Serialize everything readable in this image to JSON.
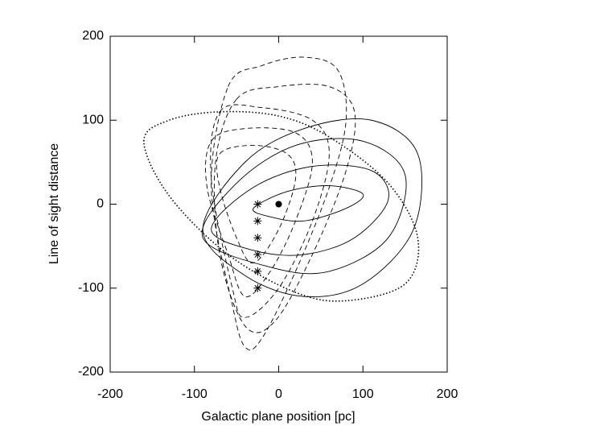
{
  "chart_data": {
    "type": "line",
    "xlabel": "Galactic plane position [pc]",
    "ylabel": "Line of sight distance",
    "xlim": [
      -200,
      200
    ],
    "ylim": [
      -200,
      200
    ],
    "xticks": [
      -200,
      -100,
      0,
      100,
      200
    ],
    "yticks": [
      -200,
      -100,
      0,
      100,
      200
    ],
    "color": "#000000",
    "series": [
      {
        "style": "dotted",
        "closed": true,
        "x": [
          -160,
          -130,
          -70,
          0,
          60,
          130,
          165,
          150,
          80,
          20,
          -60,
          -130
        ],
        "y": [
          75,
          100,
          110,
          105,
          80,
          25,
          -40,
          -95,
          -115,
          -105,
          -60,
          10
        ]
      },
      {
        "style": "solid",
        "closed": true,
        "x": [
          -30,
          10,
          60,
          100,
          80,
          30,
          -10
        ],
        "y": [
          -5,
          15,
          22,
          12,
          -5,
          -20,
          -15
        ]
      },
      {
        "style": "solid",
        "closed": true,
        "x": [
          -80,
          -30,
          40,
          110,
          130,
          90,
          30,
          -30
        ],
        "y": [
          -30,
          20,
          45,
          40,
          5,
          -40,
          -60,
          -55
        ]
      },
      {
        "style": "solid",
        "closed": true,
        "x": [
          -90,
          -50,
          20,
          100,
          150,
          130,
          60,
          -10
        ],
        "y": [
          -40,
          25,
          70,
          75,
          35,
          -40,
          -80,
          -75
        ]
      },
      {
        "style": "solid",
        "closed": true,
        "x": [
          -90,
          -40,
          30,
          110,
          165,
          160,
          100,
          30,
          -40
        ],
        "y": [
          -30,
          50,
          90,
          100,
          60,
          -30,
          -95,
          -110,
          -85
        ]
      },
      {
        "style": "dashed",
        "closed": true,
        "x": [
          -60,
          -20,
          30,
          70,
          80,
          60,
          20,
          -20,
          -40,
          -55,
          -80
        ],
        "y": [
          140,
          165,
          175,
          160,
          100,
          20,
          -80,
          -160,
          -170,
          -120,
          20
        ]
      },
      {
        "style": "dashed",
        "closed": true,
        "x": [
          -50,
          0,
          60,
          90,
          80,
          40,
          -5,
          -40,
          -70,
          -75
        ],
        "y": [
          125,
          140,
          140,
          110,
          40,
          -60,
          -140,
          -145,
          -60,
          50
        ]
      },
      {
        "style": "dashed",
        "closed": true,
        "x": [
          -70,
          -20,
          40,
          60,
          40,
          0,
          -40,
          -55,
          -80
        ],
        "y": [
          110,
          115,
          100,
          60,
          -20,
          -100,
          -135,
          -100,
          30
        ]
      },
      {
        "style": "dashed",
        "closed": true,
        "x": [
          -80,
          -40,
          20,
          40,
          20,
          -10,
          -40,
          -60,
          -85
        ],
        "y": [
          75,
          90,
          85,
          50,
          -20,
          -80,
          -110,
          -60,
          20
        ]
      },
      {
        "style": "dashed",
        "closed": true,
        "x": [
          -70,
          -30,
          10,
          20,
          0,
          -30,
          -50,
          -70
        ],
        "y": [
          60,
          70,
          60,
          30,
          -30,
          -70,
          -40,
          20
        ]
      },
      {
        "style": "none",
        "marker": "star",
        "x": [
          -25,
          -25,
          -25,
          -25,
          -25,
          -25
        ],
        "y": [
          0,
          -20,
          -40,
          -60,
          -80,
          -100
        ]
      },
      {
        "style": "none",
        "marker": "dot",
        "x": [
          0
        ],
        "y": [
          0
        ]
      }
    ]
  }
}
